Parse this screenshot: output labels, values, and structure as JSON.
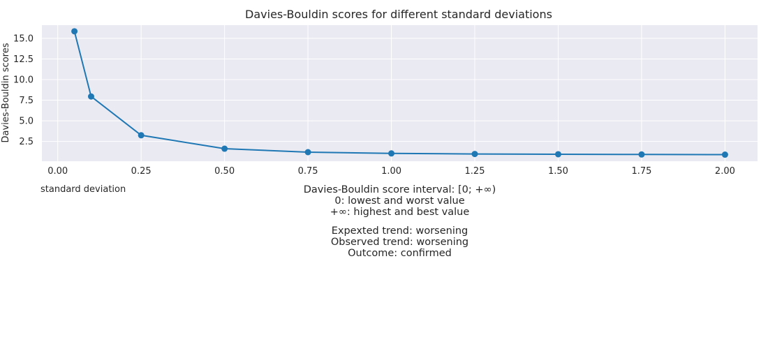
{
  "chart_data": {
    "type": "line",
    "title": "Davies-Bouldin scores for different standard deviations",
    "xlabel": "standard deviation",
    "ylabel": "Davies-Bouldin scores",
    "x": [
      0.05,
      0.1,
      0.25,
      0.5,
      0.75,
      1.0,
      1.25,
      1.5,
      1.75,
      2.0
    ],
    "series": [
      {
        "values": [
          15.85,
          7.95,
          3.25,
          1.62,
          1.2,
          1.05,
          0.98,
          0.95,
          0.92,
          0.9
        ]
      }
    ],
    "xlim": [
      -0.0475,
      2.0975
    ],
    "ylim": [
      0.1,
      16.6
    ],
    "xticks": [
      0.0,
      0.25,
      0.5,
      0.75,
      1.0,
      1.25,
      1.5,
      1.75,
      2.0
    ],
    "xtick_labels": [
      "0.00",
      "0.25",
      "0.50",
      "0.75",
      "1.00",
      "1.25",
      "1.50",
      "1.75",
      "2.00"
    ],
    "yticks": [
      2.5,
      5.0,
      7.5,
      10.0,
      12.5,
      15.0
    ],
    "ytick_labels": [
      "2.5",
      "5.0",
      "7.5",
      "10.0",
      "12.5",
      "15.0"
    ],
    "grid": true,
    "colors": {
      "line": "#1f77b4",
      "plot_background": "#eaeaf2",
      "grid": "#ffffff"
    }
  },
  "notes": {
    "interval": [
      "Davies-Bouldin score interval: [0; +∞)",
      "0: lowest and worst value",
      "+∞: highest and best value"
    ],
    "trend": [
      "Expexted trend: worsening",
      "Observed trend: worsening",
      "Outcome: confirmed"
    ]
  }
}
